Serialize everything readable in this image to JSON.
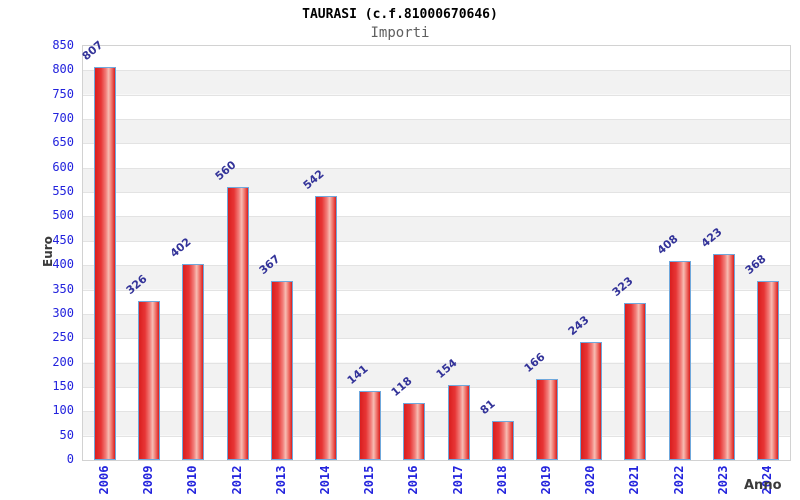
{
  "chart_data": {
    "type": "bar",
    "title": "TAURASI (c.f.81000670646)",
    "subtitle": "Importi",
    "xlabel": "Anno",
    "ylabel": "Euro",
    "categories": [
      "2006",
      "2009",
      "2010",
      "2012",
      "2013",
      "2014",
      "2015",
      "2016",
      "2017",
      "2018",
      "2019",
      "2020",
      "2021",
      "2022",
      "2023",
      "2024"
    ],
    "values": [
      807,
      326,
      402,
      560,
      367,
      542,
      141,
      118,
      154,
      81,
      166,
      243,
      323,
      408,
      423,
      368
    ],
    "ylim": [
      0,
      850
    ],
    "ytick_step": 50,
    "grid": true,
    "legend": "none",
    "colors": {
      "bar_fill": "#e62222",
      "bar_fill_highlight": "#f7bdb4",
      "bar_border": "#6fa8dc",
      "axis_tick_text": "#2323dd",
      "data_label_text": "#333399",
      "band_stripe": "#f2f2f2",
      "plot_border": "#d2d2d2",
      "title_text": "#000000",
      "subtitle_text": "#5f5f5f",
      "axis_title_text": "#3a3a3a"
    }
  }
}
